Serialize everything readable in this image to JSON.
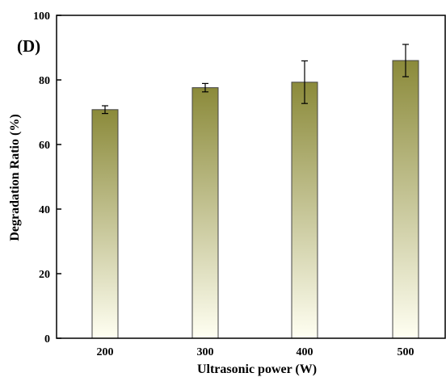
{
  "chart_data": {
    "type": "bar",
    "panel_label": "(D)",
    "xlabel": "Ultrasonic power  (W)",
    "ylabel": "Degradation Ratio (%)",
    "categories": [
      "200",
      "300",
      "400",
      "500"
    ],
    "values": [
      70.8,
      77.6,
      79.3,
      86.0
    ],
    "errors": [
      1.2,
      1.3,
      6.6,
      5.0
    ],
    "ylim": [
      0,
      100
    ],
    "yticks": [
      0,
      20,
      40,
      60,
      80,
      100
    ],
    "grid": false,
    "legend": "none",
    "bar_gradient": {
      "top": "#8b8a3a",
      "bottom": "#fffff2"
    },
    "bar_outline": "#444444"
  }
}
